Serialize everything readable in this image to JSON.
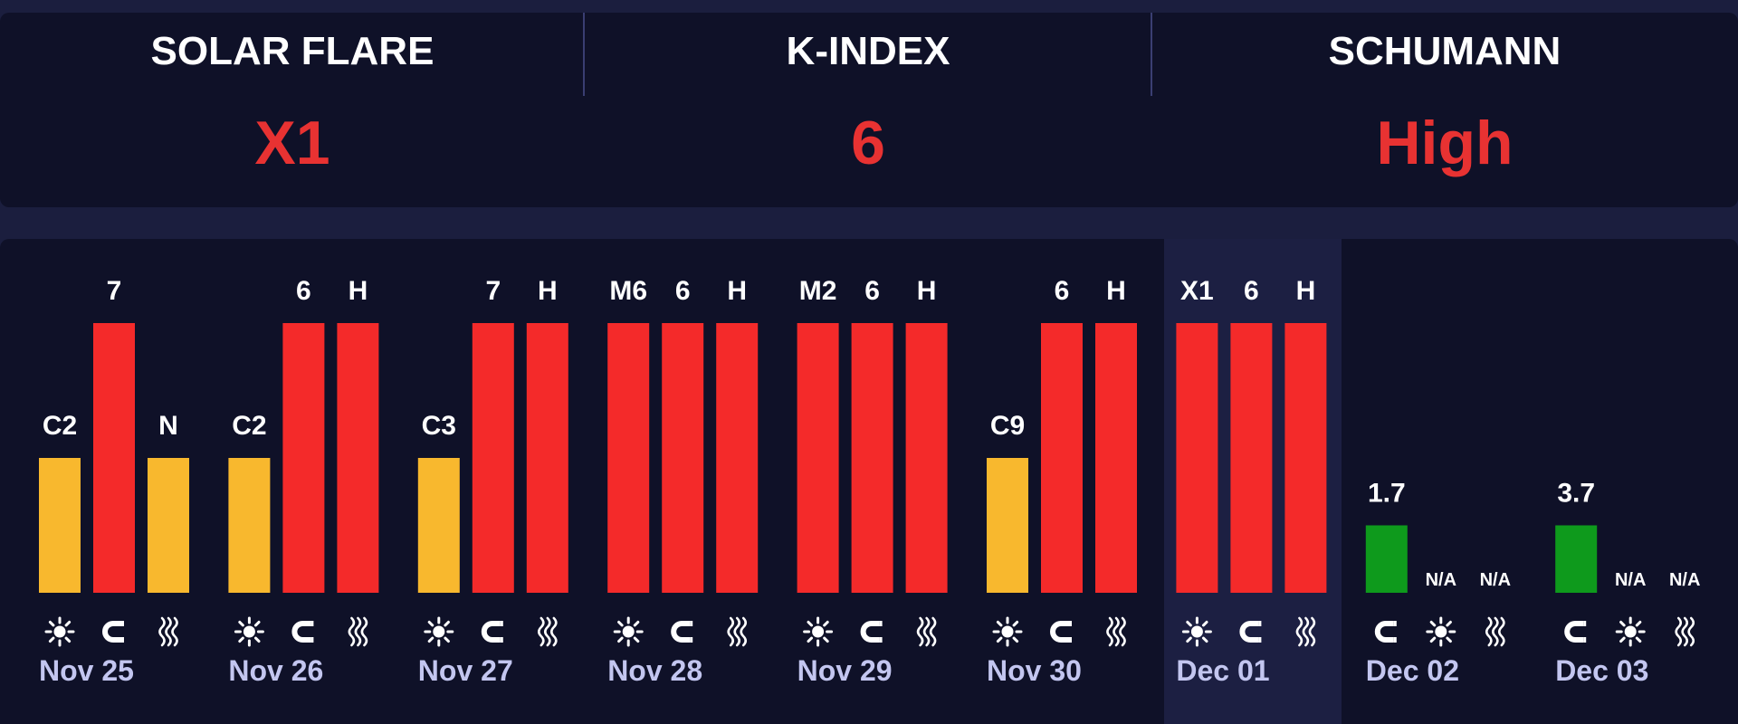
{
  "header": {
    "stats": [
      {
        "label": "SOLAR FLARE",
        "value": "X1"
      },
      {
        "label": "K-INDEX",
        "value": "6"
      },
      {
        "label": "SCHUMANN",
        "value": "High"
      }
    ]
  },
  "colors": {
    "background": "#1b1e3e",
    "panel": "#0f1128",
    "today_panel": "#1c1f42",
    "red": "#f42a2a",
    "orange": "#f8b82e",
    "green": "#0e9a1c",
    "value_text": "#e83232",
    "date_text": "#c3c6f0"
  },
  "icons": {
    "sun": "sun-icon",
    "magnet": "magnet-icon",
    "waves": "waves-icon"
  },
  "chart_data": {
    "type": "bar",
    "highlighted_day": "Dec 01",
    "level_scale": "low to high, relative",
    "days": [
      {
        "date": "Nov 25",
        "bars": [
          {
            "icon": "sun",
            "label": "C2",
            "level": 0.5,
            "color": "orange"
          },
          {
            "icon": "magnet",
            "label": "7",
            "level": 1.0,
            "color": "red"
          },
          {
            "icon": "waves",
            "label": "N",
            "level": 0.5,
            "color": "orange"
          }
        ]
      },
      {
        "date": "Nov 26",
        "bars": [
          {
            "icon": "sun",
            "label": "C2",
            "level": 0.5,
            "color": "orange"
          },
          {
            "icon": "magnet",
            "label": "6",
            "level": 1.0,
            "color": "red"
          },
          {
            "icon": "waves",
            "label": "H",
            "level": 1.0,
            "color": "red"
          }
        ]
      },
      {
        "date": "Nov 27",
        "bars": [
          {
            "icon": "sun",
            "label": "C3",
            "level": 0.5,
            "color": "orange"
          },
          {
            "icon": "magnet",
            "label": "7",
            "level": 1.0,
            "color": "red"
          },
          {
            "icon": "waves",
            "label": "H",
            "level": 1.0,
            "color": "red"
          }
        ]
      },
      {
        "date": "Nov 28",
        "bars": [
          {
            "icon": "sun",
            "label": "M6",
            "level": 1.0,
            "color": "red"
          },
          {
            "icon": "magnet",
            "label": "6",
            "level": 1.0,
            "color": "red"
          },
          {
            "icon": "waves",
            "label": "H",
            "level": 1.0,
            "color": "red"
          }
        ]
      },
      {
        "date": "Nov 29",
        "bars": [
          {
            "icon": "sun",
            "label": "M2",
            "level": 1.0,
            "color": "red"
          },
          {
            "icon": "magnet",
            "label": "6",
            "level": 1.0,
            "color": "red"
          },
          {
            "icon": "waves",
            "label": "H",
            "level": 1.0,
            "color": "red"
          }
        ]
      },
      {
        "date": "Nov 30",
        "bars": [
          {
            "icon": "sun",
            "label": "C9",
            "level": 0.5,
            "color": "orange"
          },
          {
            "icon": "magnet",
            "label": "6",
            "level": 1.0,
            "color": "red"
          },
          {
            "icon": "waves",
            "label": "H",
            "level": 1.0,
            "color": "red"
          }
        ]
      },
      {
        "date": "Dec 01",
        "bars": [
          {
            "icon": "sun",
            "label": "X1",
            "level": 1.0,
            "color": "red"
          },
          {
            "icon": "magnet",
            "label": "6",
            "level": 1.0,
            "color": "red"
          },
          {
            "icon": "waves",
            "label": "H",
            "level": 1.0,
            "color": "red"
          }
        ]
      },
      {
        "date": "Dec 02",
        "bars": [
          {
            "icon": "magnet",
            "label": "1.7",
            "level": 0.25,
            "color": "green"
          },
          {
            "icon": "sun",
            "label": "N/A",
            "level": 0,
            "color": "none"
          },
          {
            "icon": "waves",
            "label": "N/A",
            "level": 0,
            "color": "none"
          }
        ]
      },
      {
        "date": "Dec 03",
        "bars": [
          {
            "icon": "magnet",
            "label": "3.7",
            "level": 0.25,
            "color": "green"
          },
          {
            "icon": "sun",
            "label": "N/A",
            "level": 0,
            "color": "none"
          },
          {
            "icon": "waves",
            "label": "N/A",
            "level": 0,
            "color": "none"
          }
        ]
      }
    ]
  }
}
